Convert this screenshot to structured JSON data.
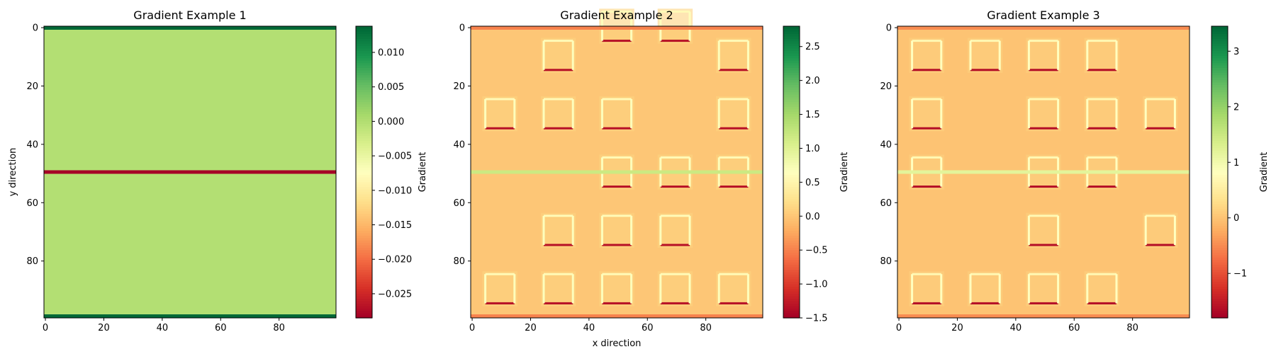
{
  "chart_data": [
    {
      "type": "heatmap",
      "title": "Gradient Example 1",
      "xlabel": "",
      "ylabel": "y direction",
      "colorbar_label": "Gradient",
      "colormap": "RdYlGn",
      "grid_size": [
        100,
        100
      ],
      "xlim": [
        0,
        99
      ],
      "ylim": [
        99,
        0
      ],
      "xticks": [
        0,
        20,
        40,
        60,
        80
      ],
      "yticks": [
        0,
        20,
        40,
        60,
        80
      ],
      "value_range": [
        -0.0285,
        0.0138
      ],
      "colorbar_ticks": [
        {
          "value": 0.01,
          "label": "0.010"
        },
        {
          "value": 0.005,
          "label": "0.005"
        },
        {
          "value": 0.0,
          "label": "0.000"
        },
        {
          "value": -0.005,
          "label": "−0.005"
        },
        {
          "value": -0.01,
          "label": "−0.010"
        },
        {
          "value": -0.015,
          "label": "−0.015"
        },
        {
          "value": -0.02,
          "label": "−0.020"
        },
        {
          "value": -0.025,
          "label": "−0.025"
        }
      ],
      "background_value": 0.0,
      "rows": [
        {
          "y": 0,
          "x0": 0,
          "x1": 99,
          "value": 0.0138
        },
        {
          "y": 99,
          "x0": 0,
          "x1": 99,
          "value": 0.0138
        },
        {
          "y": 50,
          "x0": 0,
          "x1": 99,
          "value": -0.0285
        }
      ],
      "cells": []
    },
    {
      "type": "heatmap",
      "title": "Gradient Example 2",
      "xlabel": "x direction",
      "ylabel": "",
      "colorbar_label": "Gradient",
      "colormap": "RdYlGn",
      "grid_size": [
        100,
        100
      ],
      "xlim": [
        0,
        99
      ],
      "ylim": [
        99,
        0
      ],
      "xticks": [
        0,
        20,
        40,
        60,
        80
      ],
      "yticks": [
        0,
        20,
        40,
        60,
        80
      ],
      "value_range": [
        -1.5,
        2.8
      ],
      "colorbar_ticks": [
        {
          "value": 2.5,
          "label": "2.5"
        },
        {
          "value": 2.0,
          "label": "2.0"
        },
        {
          "value": 1.5,
          "label": "1.5"
        },
        {
          "value": 1.0,
          "label": "1.0"
        },
        {
          "value": 0.5,
          "label": "0.5"
        },
        {
          "value": 0.0,
          "label": "0.0"
        },
        {
          "value": -0.5,
          "label": "−0.5"
        },
        {
          "value": -1.0,
          "label": "−1.0"
        },
        {
          "value": -1.5,
          "label": "−1.5"
        }
      ],
      "background_value": 0.0,
      "rows": [
        {
          "y": 0,
          "x0": 0,
          "x1": 99,
          "value": -0.5
        },
        {
          "y": 99,
          "x0": 0,
          "x1": 99,
          "value": -0.5
        },
        {
          "y": 50,
          "x0": 0,
          "x1": 99,
          "value": 1.2
        }
      ],
      "cells": [
        [
          10,
          30
        ],
        [
          30,
          10
        ],
        [
          30,
          30
        ],
        [
          50,
          0
        ],
        [
          50,
          30
        ],
        [
          70,
          0
        ],
        [
          90,
          10
        ],
        [
          90,
          30
        ],
        [
          50,
          50
        ],
        [
          70,
          50
        ],
        [
          90,
          50
        ],
        [
          30,
          70
        ],
        [
          50,
          70
        ],
        [
          70,
          70
        ],
        [
          10,
          90
        ],
        [
          30,
          90
        ],
        [
          50,
          90
        ],
        [
          70,
          90
        ],
        [
          90,
          90
        ]
      ]
    },
    {
      "type": "heatmap",
      "title": "Gradient Example 3",
      "xlabel": "",
      "ylabel": "",
      "colorbar_label": "Gradient",
      "colormap": "RdYlGn",
      "grid_size": [
        100,
        100
      ],
      "xlim": [
        0,
        99
      ],
      "ylim": [
        99,
        0
      ],
      "xticks": [
        0,
        20,
        40,
        60,
        80
      ],
      "yticks": [
        0,
        20,
        40,
        60,
        80
      ],
      "value_range": [
        -1.8,
        3.45
      ],
      "colorbar_ticks": [
        {
          "value": 3,
          "label": "3"
        },
        {
          "value": 2,
          "label": "2"
        },
        {
          "value": 1,
          "label": "1"
        },
        {
          "value": 0,
          "label": "0"
        },
        {
          "value": -1,
          "label": "−1"
        }
      ],
      "background_value": 0.0,
      "rows": [
        {
          "y": 0,
          "x0": 0,
          "x1": 99,
          "value": -0.5
        },
        {
          "y": 99,
          "x0": 0,
          "x1": 99,
          "value": -0.5
        },
        {
          "y": 50,
          "x0": 0,
          "x1": 99,
          "value": 1.2
        }
      ],
      "cells": [
        [
          10,
          10
        ],
        [
          10,
          30
        ],
        [
          10,
          50
        ],
        [
          10,
          90
        ],
        [
          30,
          10
        ],
        [
          30,
          90
        ],
        [
          50,
          10
        ],
        [
          50,
          30
        ],
        [
          50,
          50
        ],
        [
          50,
          70
        ],
        [
          50,
          90
        ],
        [
          70,
          10
        ],
        [
          70,
          30
        ],
        [
          70,
          50
        ],
        [
          70,
          90
        ],
        [
          90,
          30
        ],
        [
          90,
          70
        ]
      ]
    }
  ]
}
